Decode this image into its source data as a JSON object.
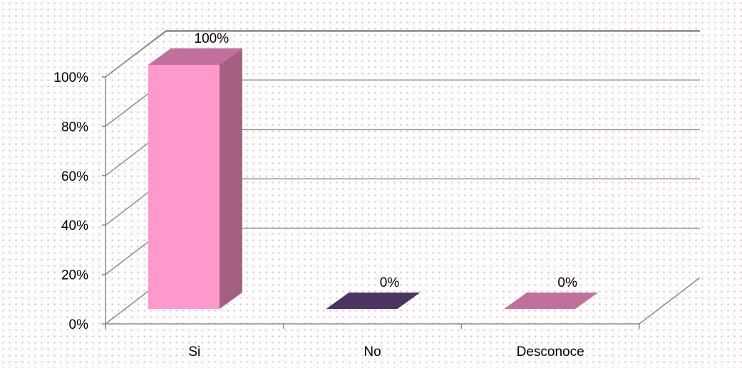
{
  "chart_data": {
    "type": "bar",
    "three_d": true,
    "categories": [
      "Si",
      "No",
      "Desconoce"
    ],
    "values": [
      100,
      0,
      0
    ],
    "data_labels": [
      "100%",
      "0%",
      "0%"
    ],
    "y_ticks": [
      "0%",
      "20%",
      "40%",
      "60%",
      "80%",
      "100%"
    ],
    "ylim": [
      0,
      100
    ],
    "grid": true,
    "legend": "none",
    "colors": {
      "bar_fronts": [
        "#ff99cc",
        "#4a3560",
        "#c0709a"
      ],
      "bar_sides": [
        "#a45e80",
        "#3a2a4c",
        "#9a5a7c"
      ],
      "bar_tops": [
        "#c0709a",
        "#4a3560",
        "#c0709a"
      ],
      "grid": "#8c8c8c",
      "background_dots": "#f2a7c0"
    }
  }
}
